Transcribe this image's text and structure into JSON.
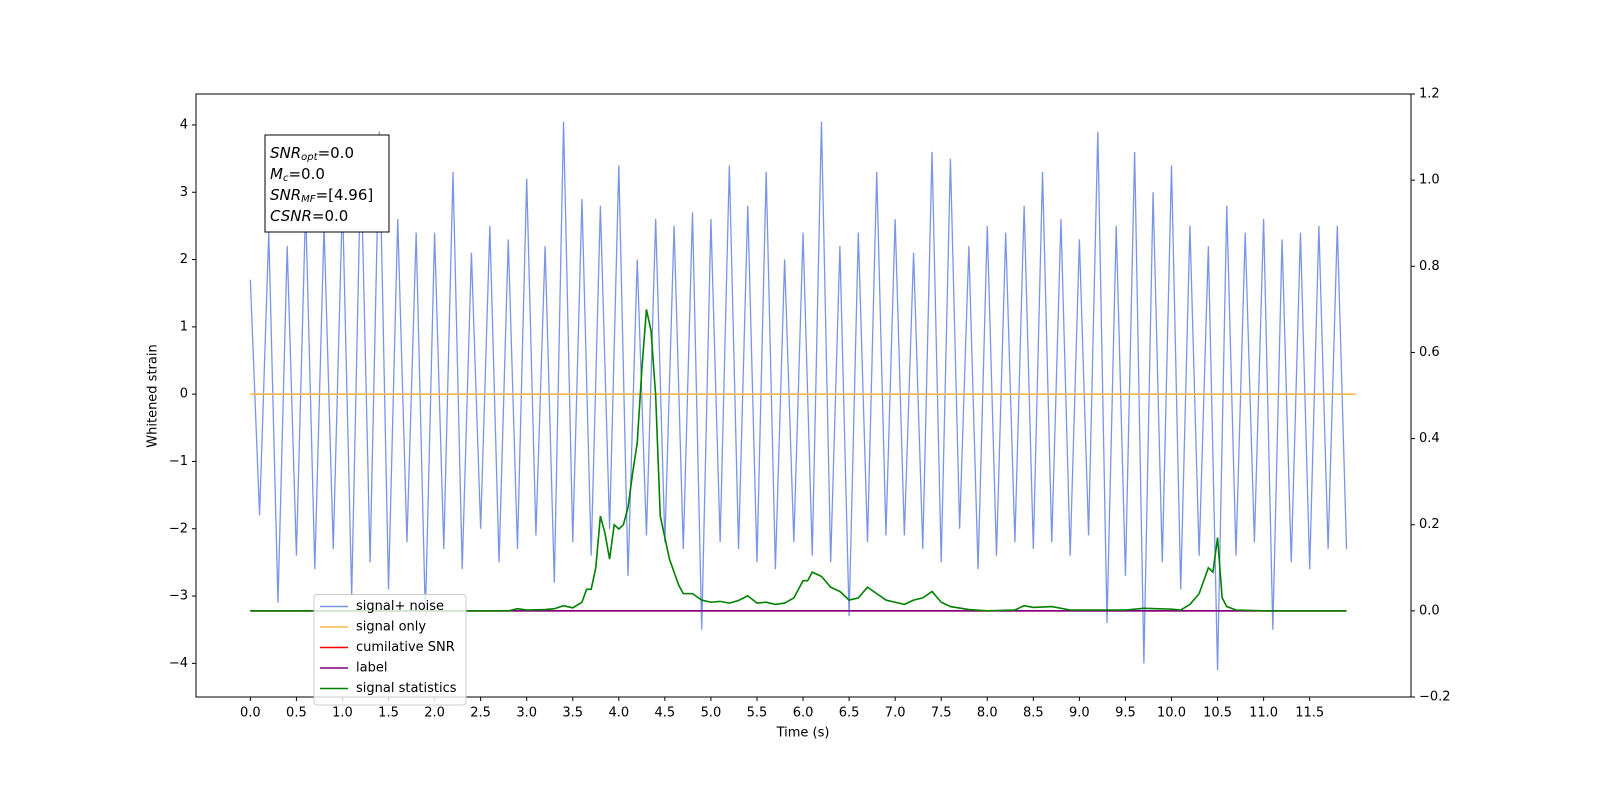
{
  "chart_data": {
    "type": "line",
    "xlabel": "Time (s)",
    "ylabel": "Whitened strain",
    "xlim": [
      -0.59,
      12.6
    ],
    "xticks": [
      {
        "value": 0,
        "label": "0.0"
      },
      0.5,
      {
        "value": 1,
        "label": "1.0"
      },
      1.5,
      {
        "value": 2,
        "label": "2.0"
      },
      2.5,
      {
        "value": 3,
        "label": "3.0"
      },
      3.5,
      {
        "value": 4,
        "label": "4.0"
      },
      4.5,
      {
        "value": 5,
        "label": "5.0"
      },
      5.5,
      {
        "value": 6,
        "label": "6.0"
      },
      6.5,
      {
        "value": 7,
        "label": "7.0"
      },
      7.5,
      {
        "value": 8,
        "label": "8.0"
      },
      8.5,
      {
        "value": 9,
        "label": "9.0"
      },
      9.5,
      {
        "value": 10,
        "label": "10.0"
      },
      10.5,
      {
        "value": 11,
        "label": "11.0"
      },
      11.5
    ],
    "ylim": [
      -4.5,
      4.46
    ],
    "yticks": [
      {
        "value": -4,
        "label": "−4"
      },
      {
        "value": -3,
        "label": "−3"
      },
      {
        "value": -2,
        "label": "−2"
      },
      {
        "value": -1,
        "label": "−1"
      },
      0,
      1,
      2,
      3,
      4
    ],
    "y2lim": [
      -0.2,
      1.2
    ],
    "y2ticks": [
      {
        "value": -0.2,
        "label": "−0.2"
      },
      {
        "value": 0,
        "label": "0.0"
      },
      0.2,
      0.4,
      0.6,
      0.8,
      {
        "value": 1,
        "label": "1.0"
      },
      1.2
    ],
    "legend": "lower left",
    "annotation": [
      {
        "symbol": "SNR",
        "subscript": "opt",
        "text": "=0.0"
      },
      {
        "symbol": "M",
        "subscript": "c",
        "text": "=0.0"
      },
      {
        "symbol": "SNR",
        "subscript": "MF",
        "text": "=[4.96]"
      },
      {
        "symbol": "CSNR",
        "text": "=0.0"
      }
    ],
    "series": [
      {
        "name": "signal+ noise",
        "color": "#7b95e6",
        "x": [
          0,
          0.1,
          0.2,
          0.3,
          0.4,
          0.5,
          0.6,
          0.7,
          0.8,
          0.9,
          1,
          1.1,
          1.2,
          1.3,
          1.4,
          1.5,
          1.6,
          1.7,
          1.8,
          1.9,
          2,
          2.1,
          2.2,
          2.3,
          2.4,
          2.5,
          2.6,
          2.7,
          2.8,
          2.9,
          3,
          3.1,
          3.2,
          3.3,
          3.4,
          3.5,
          3.6,
          3.7,
          3.8,
          3.9,
          4,
          4.1,
          4.2,
          4.3,
          4.4,
          4.5,
          4.6,
          4.7,
          4.8,
          4.9,
          5,
          5.1,
          5.2,
          5.3,
          5.4,
          5.5,
          5.6,
          5.7,
          5.8,
          5.9,
          6,
          6.1,
          6.2,
          6.3,
          6.4,
          6.5,
          6.6,
          6.7,
          6.8,
          6.9,
          7,
          7.1,
          7.2,
          7.3,
          7.4,
          7.5,
          7.6,
          7.7,
          7.8,
          7.9,
          8,
          8.1,
          8.2,
          8.3,
          8.4,
          8.5,
          8.6,
          8.7,
          8.8,
          8.9,
          9,
          9.1,
          9.2,
          9.3,
          9.4,
          9.5,
          9.6,
          9.7,
          9.8,
          9.9,
          10,
          10.1,
          10.2,
          10.3,
          10.4,
          10.5,
          10.6,
          10.7,
          10.8,
          10.9,
          11,
          11.1,
          11.2,
          11.3,
          11.4,
          11.5,
          11.6,
          11.7,
          11.8,
          11.9
        ],
        "values": [
          1.7,
          -1.8,
          2.4,
          -3.1,
          2.2,
          -2.4,
          2.8,
          -2.6,
          2.5,
          -2.3,
          2.9,
          -3.0,
          3.5,
          -2.5,
          3.9,
          -2.9,
          2.6,
          -2.2,
          2.4,
          -3.3,
          2.4,
          -2.3,
          3.3,
          -2.6,
          2.1,
          -2.0,
          2.5,
          -2.5,
          2.3,
          -2.3,
          3.2,
          -2.1,
          2.2,
          -2.8,
          4.05,
          -2.2,
          2.9,
          -2.4,
          2.8,
          -2.0,
          3.4,
          -2.7,
          2.0,
          -2.1,
          2.6,
          -2.2,
          2.5,
          -2.3,
          2.7,
          -3.5,
          2.6,
          -2.2,
          3.4,
          -2.3,
          2.8,
          -2.5,
          3.3,
          -2.6,
          2.0,
          -2.2,
          2.4,
          -2.4,
          4.05,
          -2.5,
          2.2,
          -3.3,
          2.4,
          -2.2,
          3.3,
          -2.1,
          2.6,
          -2.1,
          2.1,
          -2.3,
          3.6,
          -2.5,
          3.5,
          -2.0,
          2.2,
          -2.6,
          2.5,
          -2.4,
          2.4,
          -2.2,
          2.8,
          -2.3,
          3.3,
          -2.2,
          2.6,
          -2.4,
          2.3,
          -2.1,
          3.9,
          -3.4,
          2.5,
          -2.7,
          3.6,
          -4.0,
          3.0,
          -2.5,
          3.4,
          -2.9,
          2.5,
          -2.4,
          2.2,
          -4.1,
          2.8,
          -2.4,
          2.4,
          -2.2,
          2.6,
          -3.5,
          2.3,
          -2.5,
          2.4,
          -2.6,
          2.5,
          -2.3,
          2.5,
          -2.3
        ]
      },
      {
        "name": "signal only",
        "color": "#ffb74d",
        "x": [
          0,
          12
        ],
        "values": [
          0,
          0
        ]
      },
      {
        "name": "cumilative SNR",
        "color": "#ff0000",
        "axis": "y2",
        "x": [
          0,
          11.9
        ],
        "values": [
          0,
          0
        ]
      },
      {
        "name": "label",
        "color": "#800080",
        "axis": "y2",
        "x": [
          0,
          11.9
        ],
        "values": [
          0,
          0
        ]
      },
      {
        "name": "signal statistics",
        "color": "#008000",
        "axis": "y2",
        "x": [
          0,
          2.8,
          2.9,
          3,
          3.2,
          3.3,
          3.4,
          3.5,
          3.6,
          3.65,
          3.7,
          3.75,
          3.8,
          3.85,
          3.9,
          3.95,
          4,
          4.05,
          4.1,
          4.15,
          4.2,
          4.25,
          4.3,
          4.35,
          4.4,
          4.45,
          4.5,
          4.55,
          4.6,
          4.65,
          4.7,
          4.8,
          4.9,
          5,
          5.1,
          5.2,
          5.3,
          5.4,
          5.5,
          5.6,
          5.7,
          5.8,
          5.9,
          6,
          6.05,
          6.1,
          6.2,
          6.3,
          6.4,
          6.5,
          6.6,
          6.7,
          6.8,
          6.9,
          7,
          7.1,
          7.2,
          7.3,
          7.4,
          7.5,
          7.6,
          7.8,
          8,
          8.3,
          8.4,
          8.5,
          8.7,
          8.9,
          9.5,
          9.7,
          10,
          10.1,
          10.2,
          10.3,
          10.4,
          10.45,
          10.5,
          10.55,
          10.6,
          10.7,
          11,
          11.9
        ],
        "values": [
          0,
          0,
          0.005,
          0.002,
          0.003,
          0.005,
          0.012,
          0.007,
          0.02,
          0.05,
          0.05,
          0.1,
          0.22,
          0.18,
          0.12,
          0.2,
          0.19,
          0.2,
          0.24,
          0.32,
          0.39,
          0.56,
          0.7,
          0.65,
          0.5,
          0.22,
          0.17,
          0.12,
          0.09,
          0.06,
          0.04,
          0.04,
          0.025,
          0.02,
          0.022,
          0.018,
          0.024,
          0.035,
          0.018,
          0.02,
          0.015,
          0.018,
          0.03,
          0.07,
          0.07,
          0.09,
          0.08,
          0.055,
          0.045,
          0.025,
          0.03,
          0.055,
          0.04,
          0.025,
          0.02,
          0.015,
          0.025,
          0.03,
          0.045,
          0.02,
          0.01,
          0.003,
          0,
          0.002,
          0.012,
          0.008,
          0.01,
          0.002,
          0.002,
          0.006,
          0.004,
          0.002,
          0.015,
          0.04,
          0.1,
          0.09,
          0.17,
          0.03,
          0.01,
          0.002,
          0,
          0
        ]
      }
    ]
  }
}
